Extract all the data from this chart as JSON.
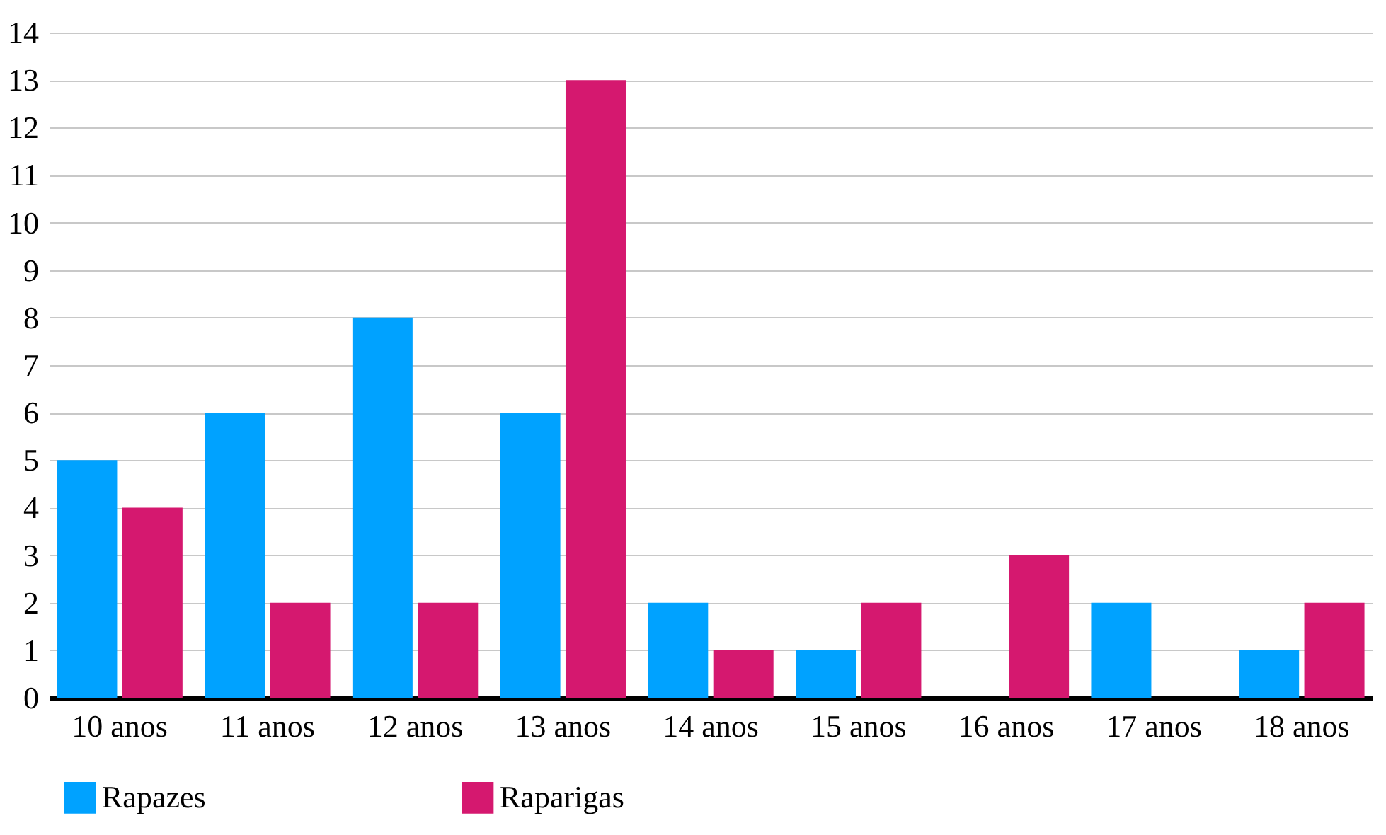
{
  "chart_data": {
    "type": "bar",
    "categories": [
      "10 anos",
      "11 anos",
      "12 anos",
      "13 anos",
      "14 anos",
      "15 anos",
      "16 anos",
      "17 anos",
      "18 anos"
    ],
    "series": [
      {
        "name": "Rapazes",
        "color": "#00a2ff",
        "values": [
          5,
          6,
          8,
          6,
          2,
          1,
          0,
          2,
          1
        ]
      },
      {
        "name": "Raparigas",
        "color": "#d5186f",
        "values": [
          4,
          2,
          2,
          13,
          1,
          2,
          3,
          0,
          2
        ]
      }
    ],
    "ylim": [
      0,
      14
    ],
    "yticks": [
      0,
      1,
      2,
      3,
      4,
      5,
      6,
      7,
      8,
      9,
      10,
      11,
      12,
      13,
      14
    ],
    "grid": "y",
    "legend": "bottom"
  }
}
